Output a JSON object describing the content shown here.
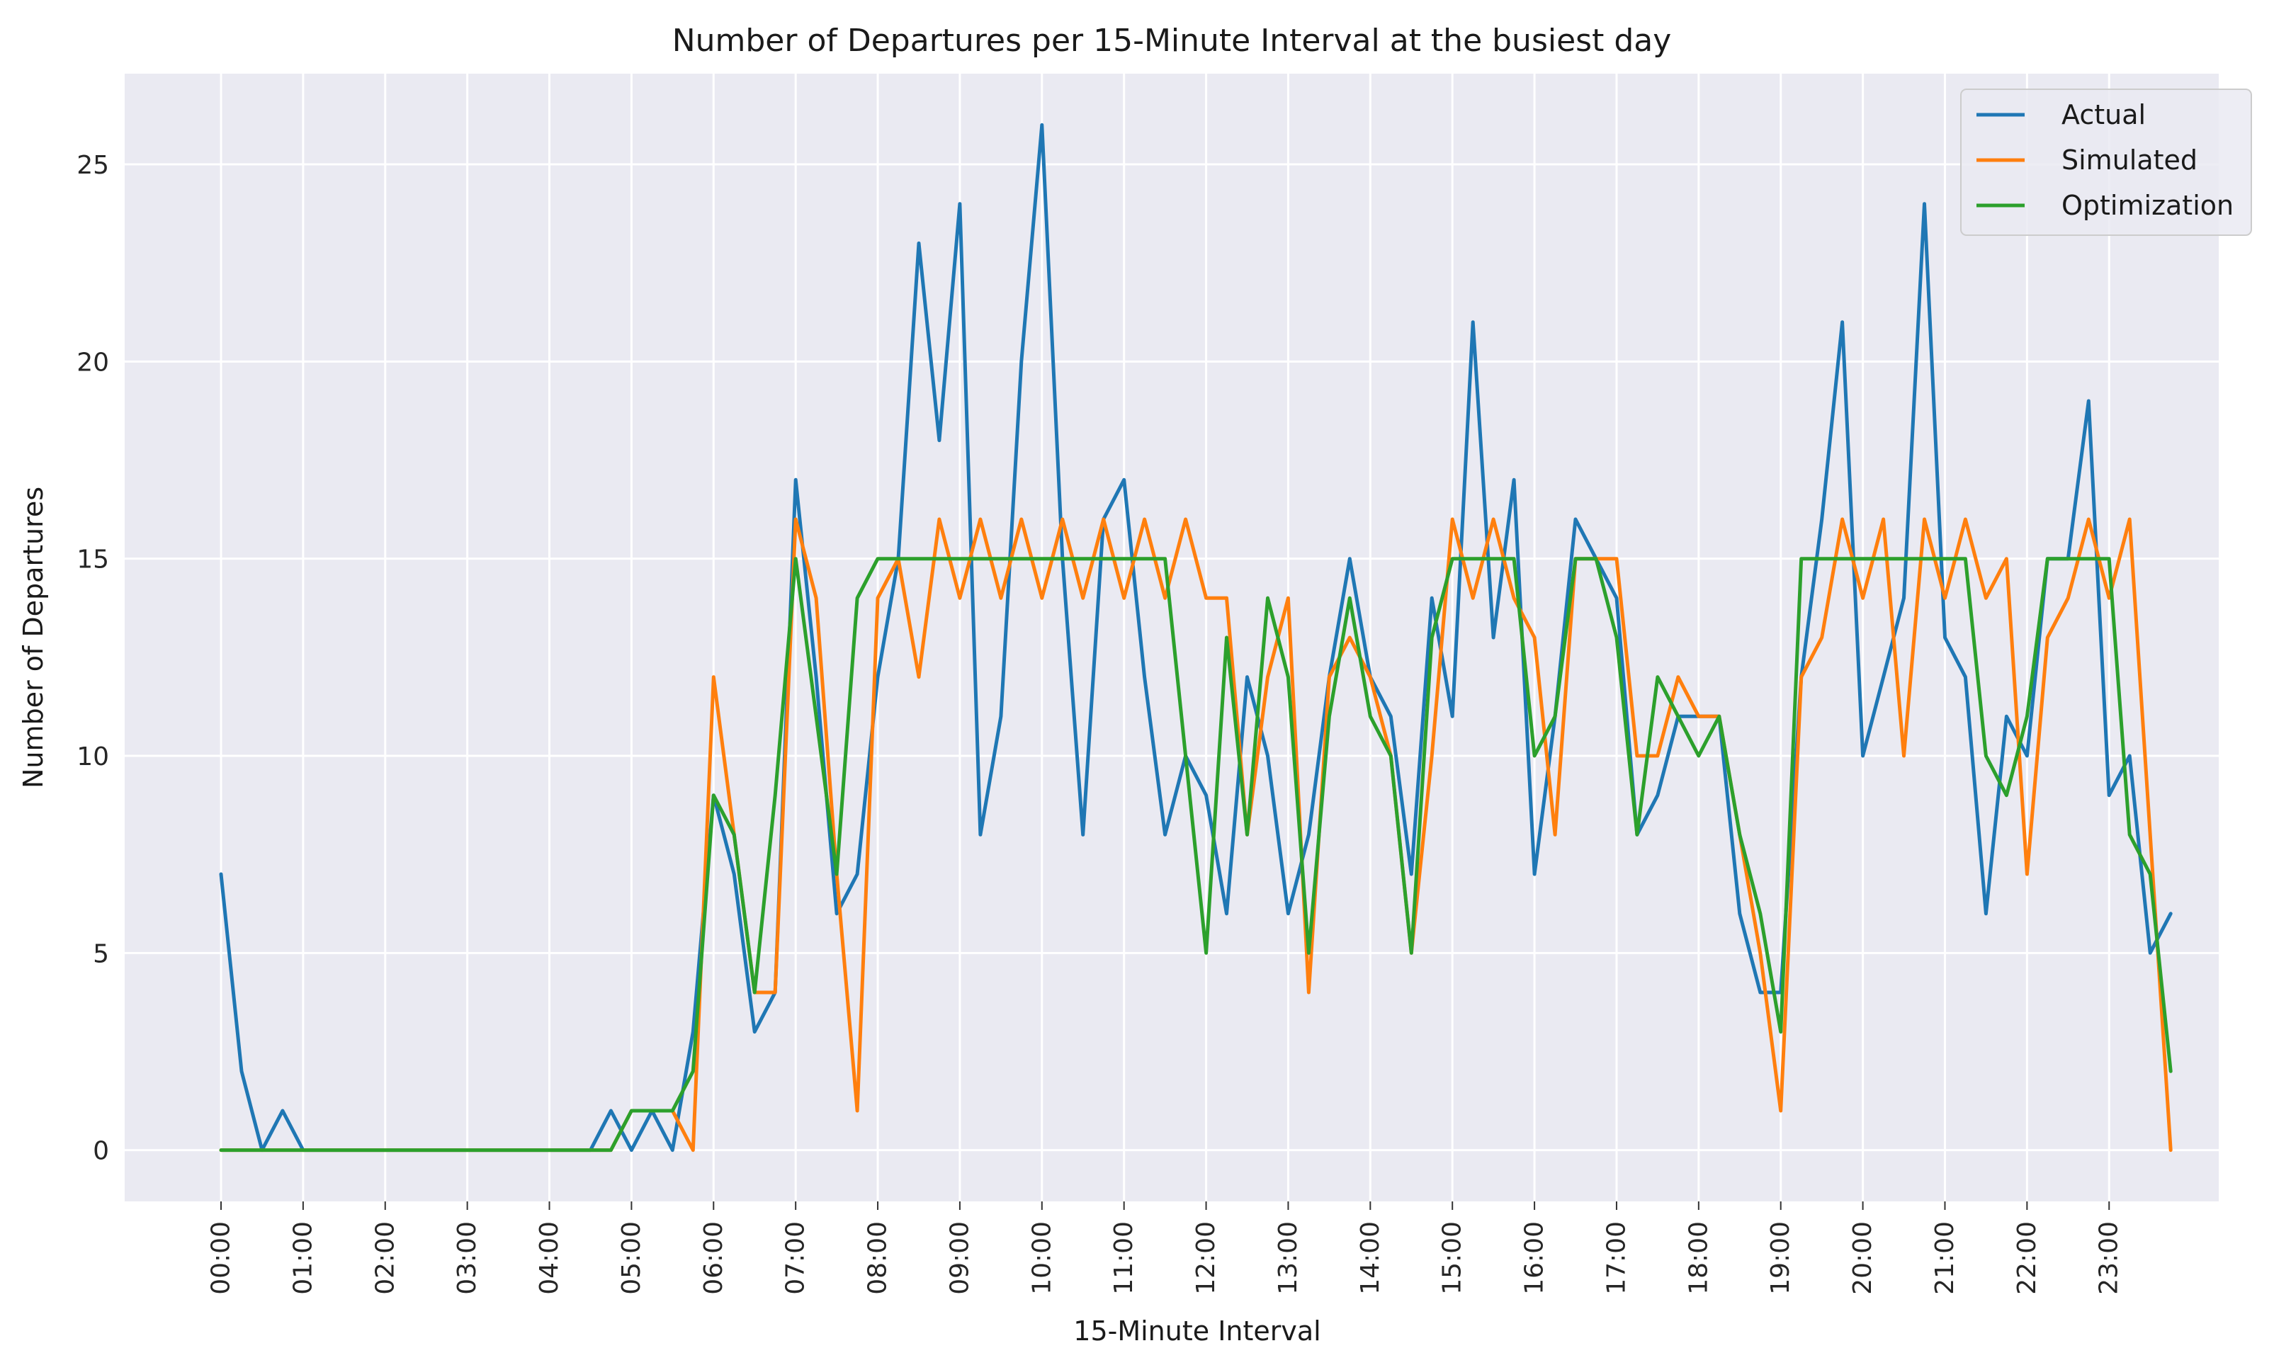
{
  "chart_data": {
    "type": "line",
    "title": "Number of Departures per 15-Minute Interval at the busiest day",
    "xlabel": "15-Minute Interval",
    "ylabel": "Number of Departures",
    "ylim": [
      -1.3,
      27.3
    ],
    "yticks": [
      0,
      5,
      10,
      15,
      20,
      25
    ],
    "xtick_labels": [
      "00:00",
      "01:00",
      "02:00",
      "03:00",
      "04:00",
      "05:00",
      "06:00",
      "07:00",
      "08:00",
      "09:00",
      "10:00",
      "11:00",
      "12:00",
      "13:00",
      "14:00",
      "15:00",
      "16:00",
      "17:00",
      "18:00",
      "19:00",
      "20:00",
      "21:00",
      "22:00",
      "23:00"
    ],
    "grid": true,
    "legend_position": "top-right",
    "colors": {
      "background": "#eaeaf2",
      "grid": "#ffffff",
      "actual": "#1f77b4",
      "simulated": "#ff7f0e",
      "optimization": "#2ca02c"
    },
    "series": [
      {
        "name": "Actual",
        "color_key": "actual",
        "values": [
          7,
          2,
          0,
          1,
          0,
          0,
          0,
          0,
          0,
          0,
          0,
          0,
          0,
          0,
          0,
          0,
          0,
          0,
          0,
          1,
          0,
          1,
          0,
          3,
          9,
          7,
          3,
          4,
          17,
          12,
          6,
          7,
          12,
          15,
          23,
          18,
          24,
          8,
          11,
          20,
          26,
          15,
          8,
          16,
          17,
          12,
          8,
          10,
          9,
          6,
          12,
          10,
          6,
          8,
          12,
          15,
          12,
          11,
          7,
          14,
          11,
          21,
          13,
          17,
          7,
          11,
          16,
          15,
          14,
          8,
          9,
          11,
          11,
          11,
          6,
          4,
          4,
          12,
          16,
          21,
          10,
          12,
          14,
          24,
          13,
          12,
          6,
          11,
          10,
          15,
          15,
          19,
          9,
          10,
          5,
          6
        ]
      },
      {
        "name": "Simulated",
        "color_key": "simulated",
        "values": [
          0,
          0,
          0,
          0,
          0,
          0,
          0,
          0,
          0,
          0,
          0,
          0,
          0,
          0,
          0,
          0,
          0,
          0,
          0,
          0,
          1,
          1,
          1,
          0,
          12,
          8,
          4,
          4,
          16,
          14,
          7,
          1,
          14,
          15,
          12,
          16,
          14,
          16,
          14,
          16,
          14,
          16,
          14,
          16,
          14,
          16,
          14,
          16,
          14,
          14,
          8,
          12,
          14,
          4,
          12,
          13,
          12,
          10,
          5,
          10,
          16,
          14,
          16,
          14,
          13,
          8,
          15,
          15,
          15,
          10,
          10,
          12,
          11,
          11,
          8,
          5,
          1,
          12,
          13,
          16,
          14,
          16,
          10,
          16,
          14,
          16,
          14,
          15,
          7,
          13,
          14,
          16,
          14,
          16,
          8,
          0
        ]
      },
      {
        "name": "Optimization",
        "color_key": "optimization",
        "values": [
          0,
          0,
          0,
          0,
          0,
          0,
          0,
          0,
          0,
          0,
          0,
          0,
          0,
          0,
          0,
          0,
          0,
          0,
          0,
          0,
          1,
          1,
          1,
          2,
          9,
          8,
          4,
          9,
          15,
          11,
          7,
          14,
          15,
          15,
          15,
          15,
          15,
          15,
          15,
          15,
          15,
          15,
          15,
          15,
          15,
          15,
          15,
          10,
          5,
          13,
          8,
          14,
          12,
          5,
          11,
          14,
          11,
          10,
          5,
          13,
          15,
          15,
          15,
          15,
          10,
          11,
          15,
          15,
          13,
          8,
          12,
          11,
          10,
          11,
          8,
          6,
          3,
          15,
          15,
          15,
          15,
          15,
          15,
          15,
          15,
          15,
          10,
          9,
          11,
          15,
          15,
          15,
          15,
          8,
          7,
          2
        ]
      }
    ]
  }
}
